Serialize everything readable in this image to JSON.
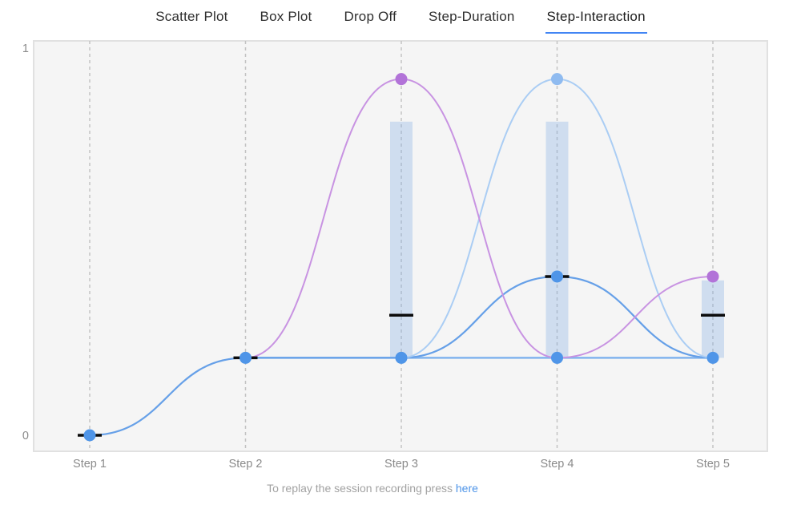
{
  "tabs": [
    {
      "label": "Scatter Plot",
      "active": false
    },
    {
      "label": "Box Plot",
      "active": false
    },
    {
      "label": "Drop Off",
      "active": false
    },
    {
      "label": "Step-Duration",
      "active": false
    },
    {
      "label": "Step-Interaction",
      "active": true
    }
  ],
  "caption": {
    "text": "To replay the session recording press",
    "link_label": "here"
  },
  "colors": {
    "accent_blue": "#4285f4",
    "link_blue": "#4e94e8",
    "plot_background": "#f5f5f5",
    "plot_border": "#e1e1e1",
    "gridline": "#c3c3c3",
    "bar_fill": "rgba(129,172,226,0.32)",
    "median_black": "#0b0b0b",
    "axis_text": "#8b8b8b"
  },
  "chart_data": {
    "type": "line",
    "title": "Step-Interaction",
    "x_categories": [
      "Step 1",
      "Step 2",
      "Step 3",
      "Step 4",
      "Step 5"
    ],
    "y_ticks": [
      0,
      1
    ],
    "ylim": [
      0,
      1
    ],
    "grid": "vertical-dashed",
    "legend": "none",
    "series": [
      {
        "name": "baseline-flat-line",
        "color": "#82b4ee",
        "width": 2.5,
        "start_step": 2,
        "values": [
          0.2,
          0.2,
          0.2,
          0.2
        ]
      },
      {
        "name": "step-progress-curve",
        "color": "#66a0e8",
        "width": 2.2,
        "start_step": 1,
        "values": [
          0,
          0.2,
          0.2,
          0.41,
          0.2
        ]
      },
      {
        "name": "light-blue-bell-curve",
        "color": "#aacdf4",
        "width": 2,
        "start_step": 3,
        "values": [
          0.2,
          0.92,
          0.2
        ]
      },
      {
        "name": "purple-bell-curve",
        "color": "#c893e2",
        "width": 2,
        "start_step": 2,
        "values": [
          0.2,
          0.92,
          0.2,
          0.41
        ]
      }
    ],
    "bars": [
      {
        "step": 3,
        "low": 0.2,
        "high": 0.81
      },
      {
        "step": 4,
        "low": 0.2,
        "high": 0.81
      },
      {
        "step": 5,
        "low": 0.2,
        "high": 0.4
      }
    ],
    "medians": [
      {
        "step": 1,
        "value": 0
      },
      {
        "step": 2,
        "value": 0.2
      },
      {
        "step": 3,
        "value": 0.31
      },
      {
        "step": 4,
        "value": 0.41
      },
      {
        "step": 5,
        "value": 0.31
      }
    ],
    "points": [
      {
        "step": 1,
        "value": 0,
        "color": "#4f95e8"
      },
      {
        "step": 2,
        "value": 0.2,
        "color": "#4f95e8"
      },
      {
        "step": 3,
        "value": 0.92,
        "color": "#b273d8"
      },
      {
        "step": 3,
        "value": 0.2,
        "color": "#4f95e8"
      },
      {
        "step": 4,
        "value": 0.92,
        "color": "#8fbbf0"
      },
      {
        "step": 4,
        "value": 0.41,
        "color": "#4f95e8"
      },
      {
        "step": 4,
        "value": 0.2,
        "color": "#4f95e8"
      },
      {
        "step": 5,
        "value": 0.41,
        "color": "#b273d8"
      },
      {
        "step": 5,
        "value": 0.2,
        "color": "#4f95e8"
      }
    ]
  }
}
